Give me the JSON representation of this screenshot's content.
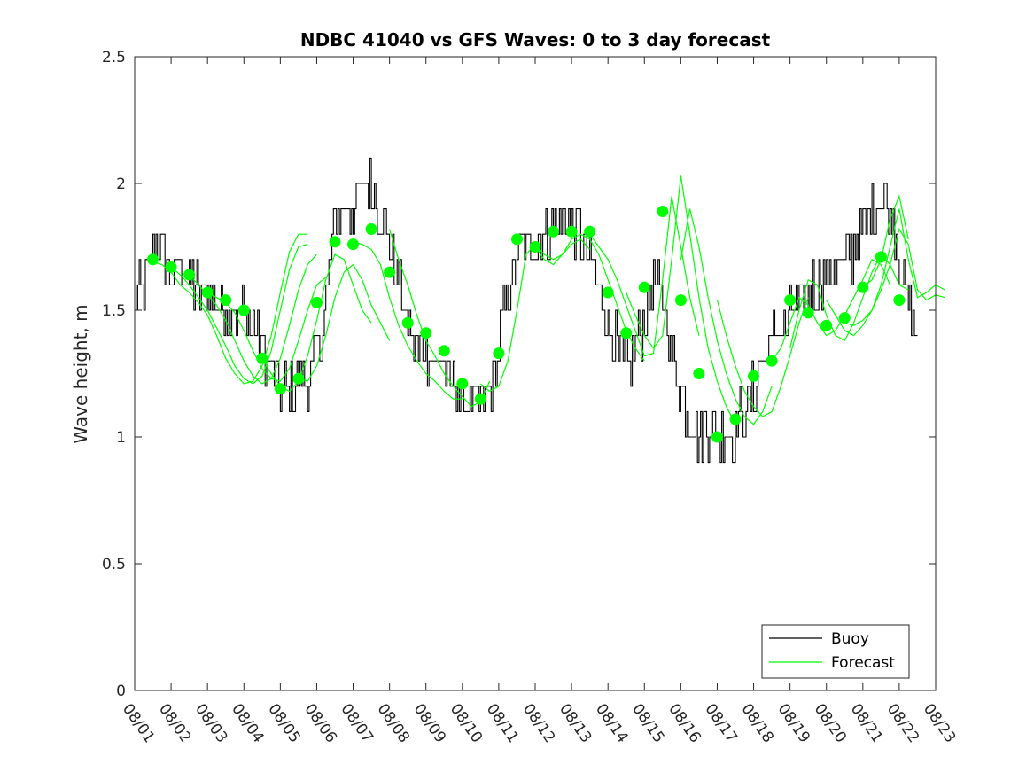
{
  "chart_data": {
    "type": "line",
    "title": "NDBC 41040 vs GFS Waves: 0 to 3 day forecast",
    "xlabel": "",
    "ylabel": "Wave height, m",
    "xlim": [
      0,
      22
    ],
    "ylim": [
      0,
      2.5
    ],
    "grid": false,
    "x_tick_labels": [
      "08/01",
      "08/02",
      "08/03",
      "08/04",
      "08/05",
      "08/06",
      "08/07",
      "08/08",
      "08/09",
      "08/10",
      "08/11",
      "08/12",
      "08/13",
      "08/14",
      "08/15",
      "08/16",
      "08/17",
      "08/18",
      "08/19",
      "08/20",
      "08/21",
      "08/22",
      "08/23"
    ],
    "y_ticks": [
      0,
      0.5,
      1,
      1.5,
      2,
      2.5
    ],
    "y_tick_labels": [
      "0",
      "0.5",
      "1",
      "1.5",
      "2",
      "2.5"
    ],
    "legend": {
      "position": "bottom-right",
      "entries": [
        {
          "label": "Buoy",
          "color": "#000000"
        },
        {
          "label": "Forecast",
          "color": "#00ff00"
        }
      ]
    },
    "colors": {
      "buoy": "#000000",
      "forecast": "#00ff00",
      "markers": "#00ff00"
    },
    "buoy_trend": {
      "x": [
        0,
        0.3,
        0.5,
        0.8,
        1,
        1.3,
        1.6,
        2,
        2.3,
        2.6,
        3,
        3.3,
        3.6,
        3.9,
        4.2,
        4.5,
        4.8,
        5.1,
        5.3,
        5.5,
        5.7,
        5.9,
        6.1,
        6.3,
        6.6,
        6.9,
        7.1,
        7.3,
        7.5,
        7.7,
        7.9,
        8.1,
        8.4,
        8.7,
        9,
        9.3,
        9.6,
        9.9,
        10.1,
        10.3,
        10.5,
        10.7,
        10.9,
        11.2,
        11.5,
        11.8,
        12.1,
        12.4,
        12.7,
        13,
        13.3,
        13.6,
        13.9,
        14.2,
        14.5,
        14.7,
        14.9,
        15.1,
        15.3,
        15.5,
        15.8,
        16.1,
        16.4,
        16.7,
        17,
        17.3,
        17.6,
        17.9,
        18.2,
        18.5,
        18.8,
        19.1,
        19.4,
        19.7,
        20,
        20.3,
        20.6,
        20.9,
        21.1,
        21.3,
        21.5
      ],
      "y": [
        1.58,
        1.62,
        1.76,
        1.72,
        1.65,
        1.68,
        1.6,
        1.55,
        1.52,
        1.5,
        1.48,
        1.42,
        1.32,
        1.22,
        1.17,
        1.2,
        1.25,
        1.38,
        1.58,
        1.85,
        1.9,
        1.88,
        1.92,
        2.0,
        1.95,
        1.82,
        1.68,
        1.55,
        1.42,
        1.36,
        1.32,
        1.33,
        1.28,
        1.22,
        1.15,
        1.12,
        1.15,
        1.25,
        1.45,
        1.62,
        1.7,
        1.72,
        1.75,
        1.8,
        1.82,
        1.85,
        1.82,
        1.75,
        1.6,
        1.45,
        1.32,
        1.28,
        1.42,
        1.6,
        1.55,
        1.38,
        1.25,
        1.12,
        1.05,
        1.02,
        1.03,
        1.0,
        1.02,
        1.08,
        1.18,
        1.32,
        1.42,
        1.45,
        1.52,
        1.56,
        1.62,
        1.66,
        1.68,
        1.72,
        1.82,
        1.92,
        1.95,
        1.8,
        1.62,
        1.5,
        1.42
      ],
      "noise_amplitude_m": 0.1
    },
    "forecast_series": [
      {
        "name": "forecast-run-1",
        "x_start": 0.5,
        "y": [
          1.69,
          1.68,
          1.65,
          1.6,
          1.57,
          1.53,
          1.48,
          1.4,
          1.31,
          1.25,
          1.21,
          1.22,
          1.28,
          1.4,
          1.57,
          1.73,
          1.8,
          1.8
        ]
      },
      {
        "name": "forecast-run-2",
        "x_start": 1.0,
        "y": [
          1.67,
          1.64,
          1.6,
          1.55,
          1.5,
          1.43,
          1.36,
          1.28,
          1.23,
          1.21,
          1.24,
          1.34,
          1.5,
          1.66,
          1.75,
          1.76
        ]
      },
      {
        "name": "forecast-run-3",
        "x_start": 1.5,
        "y": [
          1.64,
          1.6,
          1.56,
          1.52,
          1.46,
          1.38,
          1.3,
          1.24,
          1.21,
          1.23,
          1.31,
          1.44,
          1.58,
          1.68,
          1.72
        ]
      },
      {
        "name": "forecast-run-4",
        "x_start": 2.0,
        "y": [
          1.57,
          1.55,
          1.53,
          1.49,
          1.42,
          1.34,
          1.27,
          1.23,
          1.22,
          1.27,
          1.38,
          1.5,
          1.6,
          1.63
        ]
      },
      {
        "name": "forecast-run-5",
        "x_start": 3.5,
        "y": [
          1.31,
          1.25,
          1.2,
          1.18,
          1.22,
          1.32,
          1.46,
          1.62,
          1.72,
          1.7,
          1.6,
          1.5,
          1.45
        ]
      },
      {
        "name": "forecast-run-6",
        "x_start": 4.5,
        "y": [
          1.23,
          1.22,
          1.28,
          1.4,
          1.55,
          1.65,
          1.68,
          1.62,
          1.52,
          1.45,
          1.38
        ]
      },
      {
        "name": "forecast-run-7",
        "x_start": 6.0,
        "y": [
          1.77,
          1.76,
          1.74,
          1.68,
          1.55,
          1.44,
          1.36,
          1.3,
          1.25,
          1.22,
          1.18,
          1.15,
          1.15
        ]
      },
      {
        "name": "forecast-run-8",
        "x_start": 7.0,
        "y": [
          1.82,
          1.7,
          1.6,
          1.48,
          1.38,
          1.32,
          1.25,
          1.2,
          1.16,
          1.12,
          1.14,
          1.22
        ]
      },
      {
        "name": "forecast-run-9",
        "x_start": 9.5,
        "y": [
          1.21,
          1.18,
          1.2,
          1.3,
          1.5,
          1.72,
          1.76,
          1.72,
          1.7,
          1.72,
          1.76,
          1.78,
          1.74
        ]
      },
      {
        "name": "forecast-run-10",
        "x_start": 11.0,
        "y": [
          1.75,
          1.7,
          1.68,
          1.72,
          1.78,
          1.8,
          1.78,
          1.72,
          1.62,
          1.52,
          1.42,
          1.35,
          1.3
        ]
      },
      {
        "name": "forecast-run-11",
        "x_start": 12.5,
        "y": [
          1.8,
          1.75,
          1.7,
          1.62,
          1.52,
          1.42,
          1.32,
          1.33,
          1.62,
          1.95,
          1.75,
          1.55,
          1.4
        ]
      },
      {
        "name": "forecast-run-12",
        "x_start": 13.5,
        "y": [
          1.57,
          1.48,
          1.4,
          1.35,
          1.4,
          1.7,
          2.03,
          1.8,
          1.55,
          1.35,
          1.22,
          1.12,
          1.05
        ]
      },
      {
        "name": "forecast-run-13",
        "x_start": 15.0,
        "y": [
          1.7,
          1.9,
          1.75,
          1.55,
          1.38,
          1.25,
          1.15,
          1.08,
          1.05,
          1.1,
          1.2
        ]
      },
      {
        "name": "forecast-run-14",
        "x_start": 16.0,
        "y": [
          1.54,
          1.4,
          1.28,
          1.18,
          1.12,
          1.08,
          1.1,
          1.2,
          1.32,
          1.45,
          1.55
        ]
      },
      {
        "name": "forecast-run-15",
        "x_start": 17.5,
        "y": [
          1.3,
          1.35,
          1.45,
          1.55,
          1.52,
          1.45,
          1.4,
          1.42,
          1.48,
          1.55,
          1.62,
          1.7,
          1.68,
          1.6
        ]
      },
      {
        "name": "forecast-run-16",
        "x_start": 18.0,
        "y": [
          1.35,
          1.5,
          1.62,
          1.6,
          1.48,
          1.4,
          1.38,
          1.45,
          1.55,
          1.65,
          1.72,
          1.68,
          1.6,
          1.58
        ]
      },
      {
        "name": "forecast-run-17",
        "x_start": 19.0,
        "y": [
          1.54,
          1.48,
          1.42,
          1.4,
          1.44,
          1.5,
          1.6,
          1.75,
          1.9,
          1.7,
          1.55,
          1.57,
          1.6,
          1.58
        ]
      },
      {
        "name": "forecast-run-18",
        "x_start": 19.5,
        "y": [
          1.45,
          1.44,
          1.46,
          1.5,
          1.58,
          1.68,
          1.82,
          1.76,
          1.58,
          1.54,
          1.56,
          1.55
        ]
      },
      {
        "name": "forecast-run-19",
        "x_start": 20.0,
        "y": [
          1.59,
          1.62,
          1.7,
          1.86,
          1.95,
          1.78
        ]
      }
    ],
    "forecast_markers": {
      "x": [
        0.5,
        1.0,
        1.5,
        2.0,
        2.5,
        3.0,
        3.5,
        4.0,
        4.5,
        5.0,
        5.5,
        6.0,
        6.5,
        7.0,
        7.5,
        8.0,
        8.5,
        9.0,
        9.5,
        10.0,
        10.5,
        11.0,
        11.5,
        12.0,
        12.5,
        13.0,
        13.5,
        14.0,
        14.5,
        15.0,
        15.5,
        16.0,
        16.5,
        17.0,
        17.5,
        18.0,
        18.5,
        19.0,
        19.5,
        20.0,
        20.5,
        21.0
      ],
      "y": [
        1.7,
        1.67,
        1.64,
        1.57,
        1.54,
        1.5,
        1.31,
        1.19,
        1.23,
        1.53,
        1.77,
        1.76,
        1.82,
        1.65,
        1.45,
        1.41,
        1.34,
        1.21,
        1.15,
        1.33,
        1.78,
        1.75,
        1.81,
        1.81,
        1.81,
        1.57,
        1.41,
        1.59,
        1.89,
        1.54,
        1.25,
        1.0,
        1.07,
        1.24,
        1.3,
        1.54,
        1.49,
        1.44,
        1.47,
        1.59,
        1.71,
        1.54
      ]
    }
  }
}
